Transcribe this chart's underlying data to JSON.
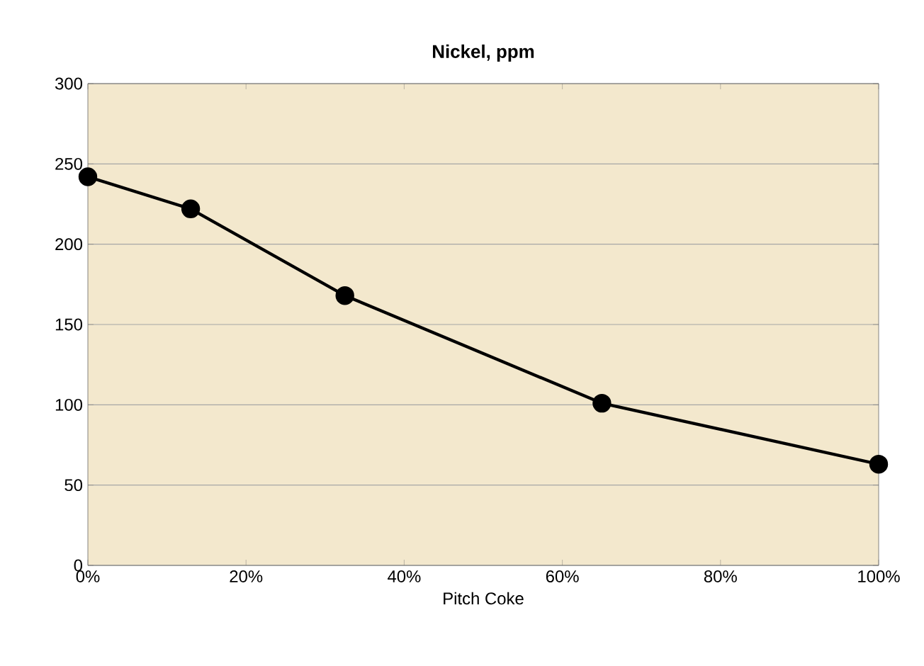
{
  "chart_data": {
    "type": "line",
    "title": "Nickel, ppm",
    "xlabel": "Pitch Coke",
    "x": [
      0,
      13,
      32.5,
      65,
      100
    ],
    "series": [
      {
        "color": "#000000",
        "values": [
          242,
          222,
          168,
          101,
          63
        ]
      }
    ],
    "xlim": [
      0,
      100
    ],
    "xticks": [
      {
        "value": 0,
        "label": "0%"
      },
      {
        "value": 20,
        "label": "20%"
      },
      {
        "value": 40,
        "label": "40%"
      },
      {
        "value": 60,
        "label": "60%"
      },
      {
        "value": 80,
        "label": "80%"
      },
      {
        "value": 100,
        "label": "100%"
      }
    ],
    "ylim": [
      0,
      300
    ],
    "yticks": [
      0,
      50,
      100,
      150,
      200,
      250,
      300
    ],
    "grid": "y",
    "marker": "circle",
    "line_style": "solid"
  }
}
